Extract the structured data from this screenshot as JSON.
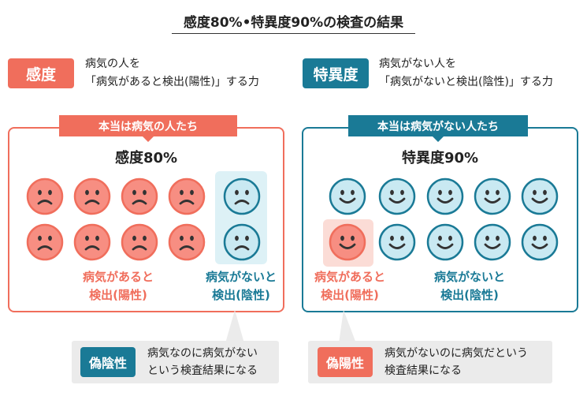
{
  "title": "感度80%•特異度90%の検査の結果",
  "colors": {
    "red": "#F06E5C",
    "teal": "#1A7A96",
    "face_red": "#F78E82",
    "face_teal": "#C9E9F2",
    "highlight_teal": "#DDF1F6",
    "highlight_red": "#FBDCD6",
    "note_bg": "#EBEBEB"
  },
  "sensitivity": {
    "tag": "感度",
    "desc": "病気の人を\n「病気があると検出(陽性)」する力"
  },
  "specificity": {
    "tag": "特異度",
    "desc": "病気がない人を\n「病気がないと検出(陰性)」する力"
  },
  "left_panel": {
    "banner": "本当は病気の人たち",
    "rate": "感度80%",
    "label_positive": "病気があると\n検出(陽性)",
    "label_negative": "病気がないと\n検出(陰性)",
    "faces": {
      "total": 10,
      "detected_positive": 8,
      "detected_negative": 2,
      "expression": "sad"
    }
  },
  "right_panel": {
    "banner": "本当は病気がない人たち",
    "rate": "特異度90%",
    "label_positive": "病気があると\n検出(陽性)",
    "label_negative": "病気がないと\n検出(陰性)",
    "faces": {
      "total": 10,
      "detected_negative": 9,
      "detected_positive": 1,
      "expression": "happy"
    }
  },
  "false_negative": {
    "tag": "偽陰性",
    "desc": "病気なのに病気がない\nという検査結果になる"
  },
  "false_positive": {
    "tag": "偽陽性",
    "desc": "病気がないのに病気だという\n検査結果になる"
  }
}
